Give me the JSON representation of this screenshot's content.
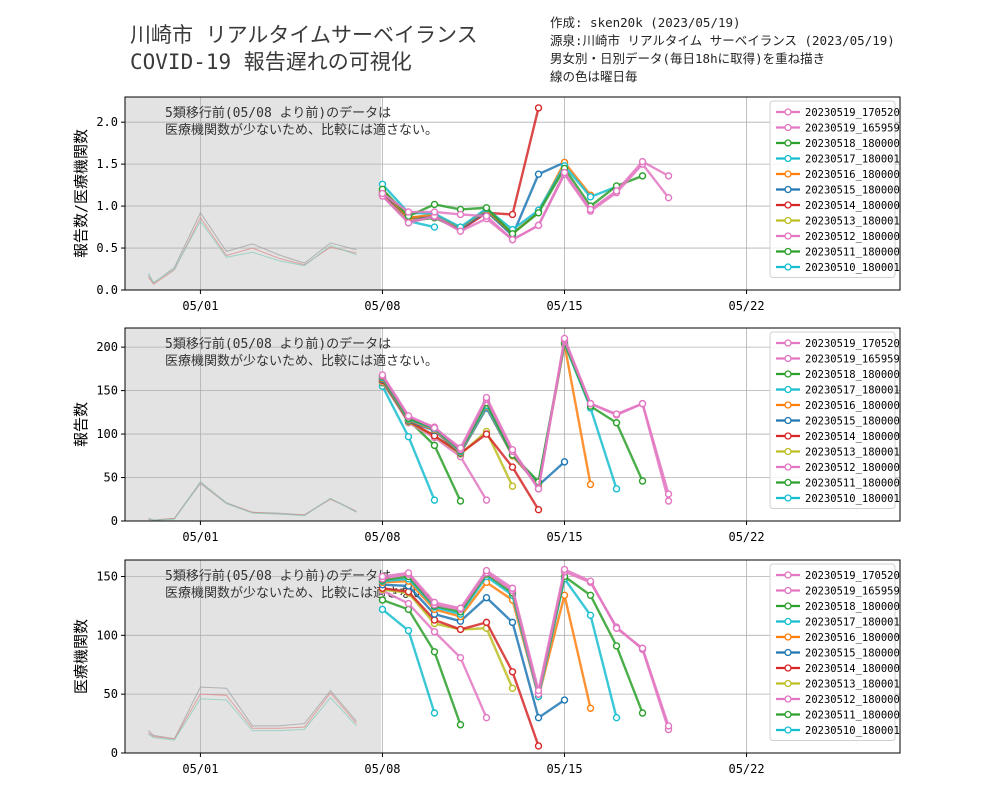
{
  "header": {
    "title_line1": "川崎市 リアルタイムサーベイランス",
    "title_line2": "COVID-19 報告遅れの可視化",
    "meta_author": "作成: sken20k (2023/05/19)",
    "meta_source": "源泉:川崎市 リアルタイム サーベイランス (2023/05/19)",
    "meta_desc": "男女別・日別データ(毎日18hに取得)を重ね描き",
    "meta_color": "線の色は曜日毎"
  },
  "annotation": {
    "line1": "5類移行前(05/08 より前)のデータは",
    "line2": "医療機関数が少ないため、比較には適さない。"
  },
  "colors": {
    "20230519_170520": "#e377c2",
    "20230519_165959": "#e377c2",
    "20230518_180000": "#2ca02c",
    "20230517_180001": "#17becf",
    "20230516_180000": "#ff7f0e",
    "20230515_180000": "#1f77b4",
    "20230514_180000": "#d62728",
    "20230513_180001": "#bcbd22",
    "20230512_180000": "#e377c2",
    "20230511_180000": "#2ca02c",
    "20230510_180001": "#17becf",
    "gray_region": "#e3e3e3",
    "pre_line": "#8c8c8c"
  },
  "chart_data": [
    {
      "type": "line",
      "ylabel": "報告数/医療機関数",
      "xlim": [
        "04/27",
        "05/26"
      ],
      "ylim": [
        0,
        2.3
      ],
      "yticks": [
        "0.0",
        "0.5",
        "1.0",
        "1.5",
        "2.0"
      ],
      "ytick_values": [
        0,
        0.5,
        1.0,
        1.5,
        2.0
      ],
      "xticks": [
        "05/01",
        "05/08",
        "05/15",
        "05/22"
      ],
      "xtick_days": [
        1,
        8,
        15,
        22
      ],
      "shaded_until_day": 8,
      "legend": [
        "20230519_170520",
        "20230519_165959",
        "20230518_180000",
        "20230517_180001",
        "20230516_180000",
        "20230515_180000",
        "20230514_180000",
        "20230513_180001",
        "20230512_180000",
        "20230511_180000",
        "20230510_180001"
      ],
      "pre_series": [
        {
          "x": [
            -1,
            -0.8,
            0,
            1,
            2,
            3,
            4,
            5,
            6,
            7
          ],
          "y": [
            0.18,
            0.08,
            0.27,
            0.92,
            0.46,
            0.55,
            0.42,
            0.32,
            0.56,
            0.48
          ]
        },
        {
          "x": [
            -1,
            -0.8,
            0,
            1,
            2,
            3,
            4,
            5,
            6,
            7
          ],
          "y": [
            0.15,
            0.07,
            0.24,
            0.86,
            0.41,
            0.5,
            0.38,
            0.3,
            0.51,
            0.44
          ]
        },
        {
          "x": [
            -1,
            -0.8,
            0,
            1,
            2,
            3,
            4,
            5,
            6,
            7
          ],
          "y": [
            0.2,
            0.09,
            0.25,
            0.82,
            0.39,
            0.45,
            0.35,
            0.29,
            0.53,
            0.42
          ]
        }
      ],
      "series": [
        {
          "name": "20230519_170520",
          "x": [
            8,
            9,
            10,
            11,
            12,
            13,
            14,
            15,
            16,
            17,
            18,
            19
          ],
          "y": [
            1.15,
            0.93,
            0.93,
            0.9,
            0.88,
            0.6,
            0.77,
            1.4,
            0.96,
            1.18,
            1.53,
            1.36
          ]
        },
        {
          "name": "20230519_165959",
          "x": [
            8,
            9,
            10,
            11,
            12,
            13,
            14,
            15,
            16,
            17,
            18,
            19
          ],
          "y": [
            1.12,
            0.8,
            0.88,
            0.7,
            0.85,
            0.6,
            0.77,
            1.38,
            0.94,
            1.16,
            1.5,
            1.1
          ]
        },
        {
          "name": "20230518_180000",
          "x": [
            8,
            9,
            10,
            11,
            12,
            13,
            14,
            15,
            16,
            17,
            18
          ],
          "y": [
            1.2,
            0.88,
            1.02,
            0.96,
            0.98,
            0.67,
            0.92,
            1.45,
            1.0,
            1.24,
            1.36
          ]
        },
        {
          "name": "20230517_180001",
          "x": [
            8,
            9,
            10,
            11,
            12,
            13,
            14,
            15,
            16,
            17
          ],
          "y": [
            1.26,
            0.92,
            0.91,
            0.75,
            0.97,
            0.72,
            0.95,
            1.48,
            1.11,
            1.23
          ]
        },
        {
          "name": "20230516_180000",
          "x": [
            8,
            9,
            10,
            11,
            12,
            13,
            14,
            15,
            16
          ],
          "y": [
            1.19,
            0.86,
            0.9,
            0.74,
            0.96,
            0.67,
            0.93,
            1.52,
            1.13
          ]
        },
        {
          "name": "20230515_180000",
          "x": [
            8,
            9,
            10,
            11,
            12,
            13,
            14,
            15
          ],
          "y": [
            1.17,
            0.86,
            0.88,
            0.73,
            0.94,
            0.65,
            1.38,
            1.52
          ]
        },
        {
          "name": "20230514_180000",
          "x": [
            8,
            9,
            10,
            11,
            12,
            13,
            14
          ],
          "y": [
            1.16,
            0.86,
            0.88,
            0.72,
            0.92,
            0.9,
            2.17
          ]
        },
        {
          "name": "20230513_180001",
          "x": [
            8,
            9,
            10,
            11,
            12,
            13
          ],
          "y": [
            1.15,
            0.85,
            0.88,
            0.72,
            0.93,
            0.66
          ]
        },
        {
          "name": "20230512_180000",
          "x": [
            8,
            9,
            10,
            11,
            12
          ],
          "y": [
            1.14,
            0.83,
            0.87,
            0.71,
            0.92
          ]
        },
        {
          "name": "20230511_180000",
          "x": [
            8,
            9,
            10,
            11
          ],
          "y": [
            1.13,
            0.82,
            0.86,
            0.72
          ]
        },
        {
          "name": "20230510_180001",
          "x": [
            8,
            9,
            10
          ],
          "y": [
            1.13,
            0.82,
            0.75
          ]
        }
      ]
    },
    {
      "type": "line",
      "ylabel": "報告数",
      "xlim": [
        "04/27",
        "05/26"
      ],
      "ylim": [
        0,
        222
      ],
      "yticks": [
        "0",
        "50",
        "100",
        "150",
        "200"
      ],
      "ytick_values": [
        0,
        50,
        100,
        150,
        200
      ],
      "xticks": [
        "05/01",
        "05/08",
        "05/15",
        "05/22"
      ],
      "xtick_days": [
        1,
        8,
        15,
        22
      ],
      "shaded_until_day": 8,
      "legend": [
        "20230519_170520",
        "20230519_165959",
        "20230518_180000",
        "20230517_180001",
        "20230516_180000",
        "20230515_180000",
        "20230514_180000",
        "20230513_180001",
        "20230512_180000",
        "20230511_180000",
        "20230510_180001"
      ],
      "pre_series": [
        {
          "x": [
            -1,
            -0.8,
            0,
            1,
            2,
            3,
            4,
            5,
            6,
            7
          ],
          "y": [
            3,
            1,
            3,
            45,
            21,
            10,
            9,
            7,
            26,
            11
          ]
        },
        {
          "x": [
            -1,
            -0.8,
            0,
            1,
            2,
            3,
            4,
            5,
            6,
            7
          ],
          "y": [
            2,
            1,
            3,
            43,
            20,
            10,
            8,
            7,
            25,
            11
          ]
        },
        {
          "x": [
            -1,
            -0.8,
            0,
            1,
            2,
            3,
            4,
            5,
            6,
            7
          ],
          "y": [
            3,
            1,
            2,
            44,
            20,
            9,
            8,
            6,
            26,
            10
          ]
        }
      ],
      "series": [
        {
          "name": "20230519_170520",
          "x": [
            8,
            9,
            10,
            11,
            12,
            13,
            14,
            15,
            16,
            17,
            18,
            19
          ],
          "y": [
            168,
            121,
            107,
            84,
            142,
            82,
            37,
            210,
            135,
            123,
            135,
            31
          ]
        },
        {
          "name": "20230519_165959",
          "x": [
            8,
            9,
            10,
            11,
            12,
            13,
            14,
            15,
            16,
            17,
            18,
            19
          ],
          "y": [
            167,
            120,
            108,
            82,
            140,
            80,
            37,
            208,
            135,
            122,
            135,
            23
          ]
        },
        {
          "name": "20230518_180000",
          "x": [
            8,
            9,
            10,
            11,
            12,
            13,
            14,
            15,
            16,
            17,
            18
          ],
          "y": [
            166,
            118,
            107,
            81,
            136,
            76,
            45,
            205,
            132,
            113,
            46
          ]
        },
        {
          "name": "20230517_180001",
          "x": [
            8,
            9,
            10,
            11,
            12,
            13,
            14,
            15,
            16,
            17
          ],
          "y": [
            165,
            117,
            106,
            80,
            133,
            76,
            44,
            204,
            130,
            37
          ]
        },
        {
          "name": "20230516_180000",
          "x": [
            8,
            9,
            10,
            11,
            12,
            13,
            14,
            15,
            16
          ],
          "y": [
            164,
            116,
            105,
            79,
            132,
            75,
            42,
            203,
            42
          ]
        },
        {
          "name": "20230515_180000",
          "x": [
            8,
            9,
            10,
            11,
            12,
            13,
            14,
            15
          ],
          "y": [
            163,
            115,
            104,
            78,
            130,
            75,
            41,
            68
          ]
        },
        {
          "name": "20230514_180000",
          "x": [
            8,
            9,
            10,
            11,
            12,
            13,
            14
          ],
          "y": [
            162,
            115,
            98,
            78,
            100,
            62,
            13
          ]
        },
        {
          "name": "20230513_180001",
          "x": [
            8,
            9,
            10,
            11,
            12,
            13
          ],
          "y": [
            161,
            114,
            98,
            77,
            103,
            40
          ]
        },
        {
          "name": "20230512_180000",
          "x": [
            8,
            9,
            10,
            11,
            12
          ],
          "y": [
            160,
            113,
            96,
            74,
            24
          ]
        },
        {
          "name": "20230511_180000",
          "x": [
            8,
            9,
            10,
            11
          ],
          "y": [
            159,
            116,
            87,
            23
          ]
        },
        {
          "name": "20230510_180001",
          "x": [
            8,
            9,
            10
          ],
          "y": [
            155,
            97,
            24
          ]
        }
      ]
    },
    {
      "type": "line",
      "ylabel": "医療機関数",
      "xlim": [
        "04/27",
        "05/26"
      ],
      "ylim": [
        0,
        164
      ],
      "yticks": [
        "0",
        "50",
        "100",
        "150"
      ],
      "ytick_values": [
        0,
        50,
        100,
        150
      ],
      "xticks": [
        "05/01",
        "05/08",
        "05/15",
        "05/22"
      ],
      "xtick_days": [
        1,
        8,
        15,
        22
      ],
      "shaded_until_day": 8,
      "legend": [
        "20230519_170520",
        "20230519_165959",
        "20230518_180000",
        "20230517_180001",
        "20230516_180000",
        "20230515_180000",
        "20230514_180000",
        "20230513_180001",
        "20230512_180000",
        "20230511_180000",
        "20230510_180001"
      ],
      "pre_series": [
        {
          "x": [
            -1,
            -0.8,
            0,
            1,
            2,
            3,
            4,
            5,
            6,
            7
          ],
          "y": [
            19,
            15,
            12,
            56,
            55,
            23,
            23,
            25,
            53,
            27
          ]
        },
        {
          "x": [
            -1,
            -0.8,
            0,
            1,
            2,
            3,
            4,
            5,
            6,
            7
          ],
          "y": [
            17,
            14,
            12,
            50,
            49,
            21,
            21,
            22,
            51,
            25
          ]
        },
        {
          "x": [
            -1,
            -0.8,
            0,
            1,
            2,
            3,
            4,
            5,
            6,
            7
          ],
          "y": [
            16,
            13,
            11,
            46,
            45,
            19,
            19,
            20,
            47,
            23
          ]
        }
      ],
      "series": [
        {
          "name": "20230519_170520",
          "x": [
            8,
            9,
            10,
            11,
            12,
            13,
            14,
            15,
            16,
            17,
            18,
            19
          ],
          "y": [
            150,
            153,
            128,
            123,
            155,
            140,
            53,
            156,
            146,
            106,
            89,
            23
          ]
        },
        {
          "name": "20230519_165959",
          "x": [
            8,
            9,
            10,
            11,
            12,
            13,
            14,
            15,
            16,
            17,
            18,
            19
          ],
          "y": [
            148,
            152,
            126,
            122,
            153,
            138,
            50,
            154,
            145,
            107,
            88,
            20
          ]
        },
        {
          "name": "20230518_180000",
          "x": [
            8,
            9,
            10,
            11,
            12,
            13,
            14,
            15,
            16,
            17,
            18
          ],
          "y": [
            147,
            150,
            125,
            120,
            152,
            136,
            50,
            150,
            134,
            91,
            34
          ]
        },
        {
          "name": "20230517_180001",
          "x": [
            8,
            9,
            10,
            11,
            12,
            13,
            14,
            15,
            16,
            17
          ],
          "y": [
            146,
            148,
            124,
            118,
            150,
            134,
            48,
            148,
            117,
            30
          ]
        },
        {
          "name": "20230516_180000",
          "x": [
            8,
            9,
            10,
            11,
            12,
            13,
            14,
            15,
            16
          ],
          "y": [
            145,
            146,
            122,
            116,
            145,
            130,
            48,
            134,
            38
          ]
        },
        {
          "name": "20230515_180000",
          "x": [
            8,
            9,
            10,
            11,
            12,
            13,
            14,
            15
          ],
          "y": [
            143,
            142,
            118,
            112,
            132,
            111,
            30,
            45
          ]
        },
        {
          "name": "20230514_180000",
          "x": [
            8,
            9,
            10,
            11,
            12,
            13,
            14
          ],
          "y": [
            140,
            137,
            113,
            105,
            111,
            69,
            6
          ]
        },
        {
          "name": "20230513_180001",
          "x": [
            8,
            9,
            10,
            11,
            12,
            13
          ],
          "y": [
            139,
            136,
            110,
            105,
            106,
            55
          ]
        },
        {
          "name": "20230512_180000",
          "x": [
            8,
            9,
            10,
            11,
            12
          ],
          "y": [
            138,
            127,
            103,
            81,
            30
          ]
        },
        {
          "name": "20230511_180000",
          "x": [
            8,
            9,
            10,
            11
          ],
          "y": [
            130,
            122,
            86,
            24
          ]
        },
        {
          "name": "20230510_180001",
          "x": [
            8,
            9,
            10
          ],
          "y": [
            122,
            104,
            34
          ]
        }
      ]
    }
  ]
}
